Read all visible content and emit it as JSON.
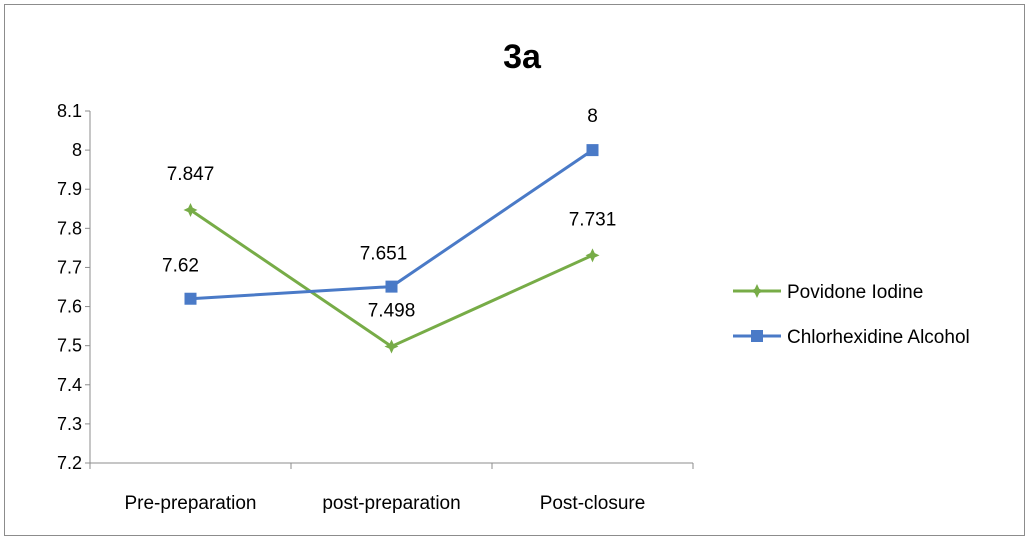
{
  "chart_data": {
    "type": "line",
    "title": "3a",
    "categories": [
      "Pre-preparation",
      "post-preparation",
      "Post-closure"
    ],
    "ylim": [
      7.2,
      8.1
    ],
    "yticks": [
      "7.2",
      "7.3",
      "7.4",
      "7.5",
      "7.6",
      "7.7",
      "7.8",
      "7.9",
      "8",
      "8.1"
    ],
    "grid": false,
    "legend_position": "right",
    "series": [
      {
        "name": "Povidone Iodine",
        "values": [
          7.847,
          7.498,
          7.731
        ],
        "labels": [
          "7.847",
          "7.498",
          "7.731"
        ],
        "color": "#77ac47",
        "marker": "star"
      },
      {
        "name": "Chlorhexidine Alcohol",
        "values": [
          7.62,
          7.651,
          8
        ],
        "labels": [
          "7.62",
          "7.651",
          "8"
        ],
        "color": "#4a7ac7",
        "marker": "square"
      }
    ]
  }
}
